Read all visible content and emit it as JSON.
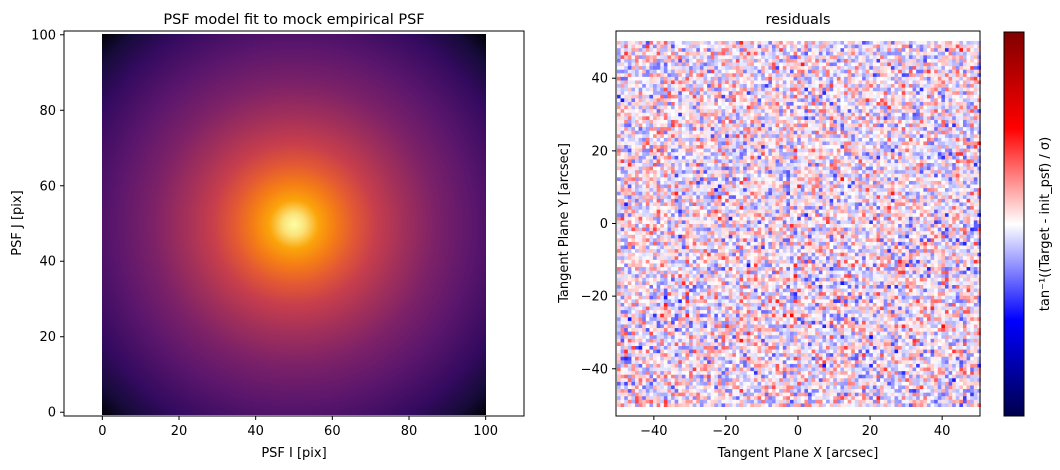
{
  "chart_data": [
    {
      "type": "heatmap",
      "title": "PSF model fit to mock empirical PSF",
      "xlabel": "PSF I [pix]",
      "ylabel": "PSF J [pix]",
      "xlim": [
        -10,
        110
      ],
      "ylim": [
        -1,
        101
      ],
      "data_extent": {
        "x": [
          0,
          100
        ],
        "y": [
          0,
          100
        ]
      },
      "xticks": [
        0,
        20,
        40,
        60,
        80,
        100
      ],
      "xtick_labels": [
        "0",
        "20",
        "40",
        "60",
        "80",
        "100"
      ],
      "yticks": [
        0,
        20,
        40,
        60,
        80,
        100
      ],
      "ytick_labels": [
        "0",
        "20",
        "40",
        "60",
        "80",
        "100"
      ],
      "colormap": "inferno",
      "peak": {
        "x": 50,
        "y": 50
      },
      "grid": false
    },
    {
      "type": "heatmap",
      "title": "residuals",
      "xlabel": "Tangent Plane X [arcsec]",
      "ylabel": "Tangent Plane Y [arcsec]",
      "xlim": [
        -50.5,
        50.5
      ],
      "ylim": [
        -53,
        53
      ],
      "data_extent": {
        "x": [
          -50,
          50
        ],
        "y": [
          -51,
          51
        ]
      },
      "xticks": [
        -40,
        -20,
        0,
        20,
        40
      ],
      "xtick_labels": [
        "−40",
        "−20",
        "0",
        "20",
        "40"
      ],
      "yticks": [
        -40,
        -20,
        0,
        20,
        40
      ],
      "ytick_labels": [
        "−40",
        "−20",
        "0",
        "20",
        "40"
      ],
      "colormap": "seismic",
      "pattern": "random noise",
      "colorbar": {
        "label": "tan⁻¹((Target - init_psf) / σ)"
      },
      "grid": false
    }
  ]
}
